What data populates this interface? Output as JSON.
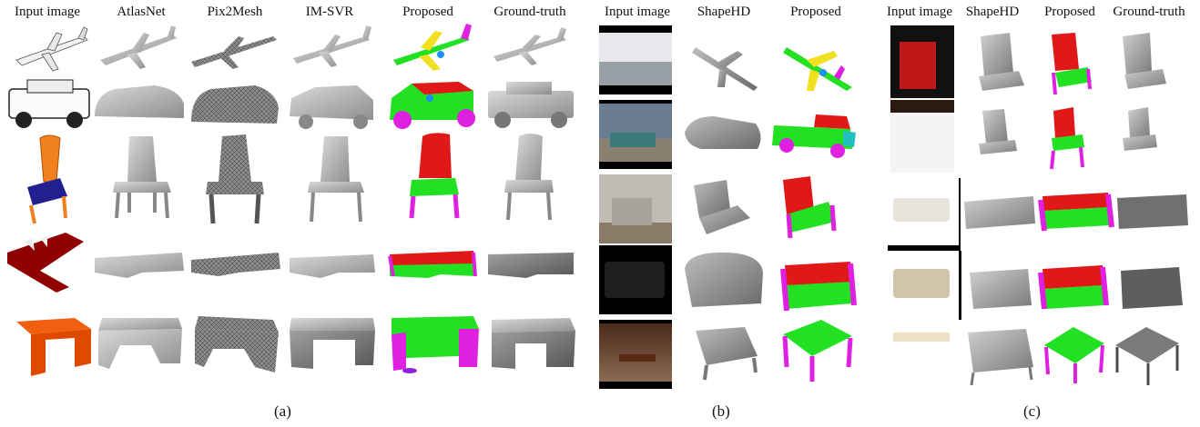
{
  "panel_a": {
    "headers": [
      "Input image",
      "AtlasNet",
      "Pix2Mesh",
      "IM-SVR",
      "Proposed",
      "Ground-truth"
    ],
    "caption": "(a)"
  },
  "panel_b": {
    "headers": [
      "Input image",
      "ShapeHD",
      "Proposed"
    ],
    "caption": "(b)"
  },
  "panel_c": {
    "headers": [
      "Input image",
      "ShapeHD",
      "Proposed",
      "Ground-truth"
    ],
    "caption": "(c)"
  },
  "colors": {
    "mesh_gray": "#a8a8a8",
    "part_green": "#22e022",
    "part_red": "#e01818",
    "part_magenta": "#e020e0",
    "part_yellow": "#f0e020",
    "part_blue": "#2090f0"
  }
}
